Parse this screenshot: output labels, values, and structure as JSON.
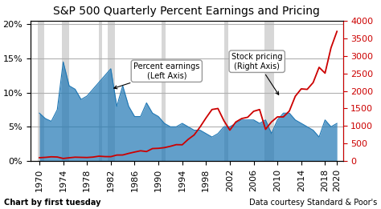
{
  "chart_data": {
    "type": "area",
    "title": "S&P 500 Quarterly Percent Earnings and Pricing",
    "footer_left": "Chart by first tuesday",
    "footer_right": "Data courtesy Standard & Poor's",
    "x": [
      1970,
      1971,
      1972,
      1973,
      1974,
      1975,
      1976,
      1977,
      1978,
      1979,
      1980,
      1981,
      1982,
      1983,
      1984,
      1985,
      1986,
      1987,
      1988,
      1989,
      1990,
      1991,
      1992,
      1993,
      1994,
      1995,
      1996,
      1997,
      1998,
      1999,
      2000,
      2001,
      2002,
      2003,
      2004,
      2005,
      2006,
      2007,
      2008,
      2009,
      2010,
      2011,
      2012,
      2013,
      2014,
      2015,
      2016,
      2017,
      2018,
      2019,
      2020
    ],
    "series": [
      {
        "type": "area",
        "values": [
          7.0,
          6.2,
          5.8,
          7.5,
          14.5,
          11.0,
          10.5,
          9.0,
          9.5,
          10.5,
          11.5,
          12.5,
          13.5,
          8.0,
          11.0,
          8.0,
          6.5,
          6.5,
          8.5,
          7.0,
          6.5,
          5.5,
          5.0,
          5.0,
          5.5,
          5.0,
          4.5,
          4.5,
          4.0,
          3.5,
          4.0,
          5.0,
          5.0,
          5.5,
          6.0,
          6.0,
          6.0,
          5.5,
          6.0,
          4.0,
          6.0,
          7.0,
          7.0,
          6.0,
          5.5,
          5.0,
          4.5,
          3.5,
          6.0,
          5.0,
          5.5
        ]
      },
      {
        "type": "line",
        "axis": "y2",
        "color": "#CC0000",
        "values": [
          92,
          102,
          118,
          112,
          70,
          90,
          107,
          102,
          98,
          110,
          136,
          124,
          122,
          168,
          170,
          215,
          254,
          290,
          268,
          353,
          360,
          380,
          418,
          465,
          461,
          616,
          742,
          970,
          1229,
          1469,
          1498,
          1150,
          880,
          1112,
          1211,
          1248,
          1418,
          1468,
          903,
          1115,
          1258,
          1258,
          1426,
          1848,
          2059,
          2044,
          2239,
          2674,
          2507,
          3231,
          3700
        ]
      }
    ],
    "recessions": [
      [
        1969.75,
        1970.75
      ],
      [
        1973.75,
        1975.0
      ],
      [
        1980.0,
        1980.5
      ],
      [
        1981.5,
        1982.75
      ],
      [
        1990.5,
        1991.25
      ],
      [
        2001.0,
        2001.75
      ],
      [
        2007.75,
        2009.5
      ]
    ],
    "recession_color": "#B0B0B0",
    "xlim": [
      1968.5,
      2021
    ],
    "xticks": [
      1970,
      1974,
      1978,
      1982,
      1986,
      1990,
      1994,
      1998,
      2002,
      2006,
      2010,
      2014,
      2018,
      2020
    ],
    "ylim": [
      0,
      20.5
    ],
    "yticks": [
      {
        "value": 0,
        "label": "0%"
      },
      {
        "value": 5,
        "label": "5%"
      },
      {
        "value": 10,
        "label": "10%"
      },
      {
        "value": 15,
        "label": "15%"
      },
      {
        "value": 20,
        "label": "20%"
      }
    ],
    "y2lim": [
      0,
      4000
    ],
    "y2ticks": [
      0,
      500,
      1000,
      1500,
      2000,
      2500,
      3000,
      3500,
      4000
    ],
    "grid": true,
    "annotations": [
      {
        "text": "Percent earnings\n(Left Axis)",
        "x": 1982,
        "y": 10.5
      },
      {
        "text": "Stock pricing\n(Right Axis)",
        "x": 2010.5,
        "y": 9.3
      }
    ]
  }
}
